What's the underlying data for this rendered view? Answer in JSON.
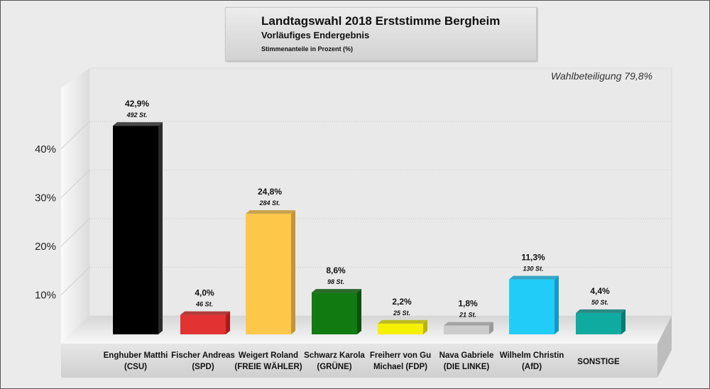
{
  "chart_data": {
    "type": "bar",
    "title": "Landtagswahl 2018 Erststimme Bergheim",
    "subtitle": "Vorläufiges Endergebnis",
    "ylabel": "Stimmenanteile in Prozent (%)",
    "annotation": "Wahlbeteiligung 79,8%",
    "categories": [
      [
        "Enghuber Matthi",
        "(CSU)"
      ],
      [
        "Fischer Andreas",
        "(SPD)"
      ],
      [
        "Weigert Roland",
        "(FREIE WÄHLER)"
      ],
      [
        "Schwarz Karola",
        "(GRÜNE)"
      ],
      [
        "Freiherr von Gu",
        "Michael (FDP)"
      ],
      [
        "Nava Gabriele",
        "(DIE LINKE)"
      ],
      [
        "Wilhelm Christin",
        "(AfD)"
      ],
      [
        "SONSTIGE",
        ""
      ]
    ],
    "values": [
      42.9,
      4.0,
      24.8,
      8.6,
      2.2,
      1.8,
      11.3,
      4.4
    ],
    "value_labels": [
      "42,9%",
      "4,0%",
      "24,8%",
      "8,6%",
      "2,2%",
      "1,8%",
      "11,3%",
      "4,4%"
    ],
    "votes_labels": [
      "492 St.",
      "46 St.",
      "284 St.",
      "98 St.",
      "25 St.",
      "21 St.",
      "130 St.",
      "50 St."
    ],
    "colors": [
      "#000000",
      "#e23232",
      "#fdc84a",
      "#117a11",
      "#f5f000",
      "#cccccc",
      "#22ccf8",
      "#0faaa0"
    ],
    "side_colors": [
      "#2a2a2a",
      "#a81c1c",
      "#c49530",
      "#0a520a",
      "#b8b400",
      "#999999",
      "#149ac0",
      "#077a72"
    ],
    "yticks": [
      10,
      20,
      30,
      40
    ],
    "ytick_labels": [
      "10%",
      "20%",
      "30%",
      "40%"
    ],
    "ylim": [
      0,
      50
    ],
    "grid": true
  }
}
